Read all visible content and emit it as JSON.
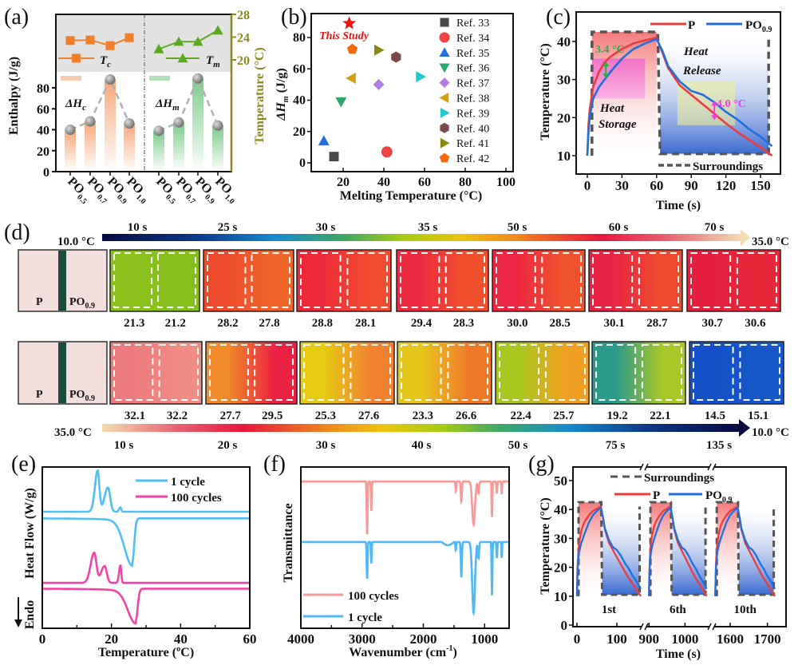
{
  "panels": {
    "a": "(a)",
    "b": "(b)",
    "c": "(c)",
    "d": "(d)",
    "e": "(e)",
    "f": "(f)",
    "g": "(g)"
  },
  "chart_data": [
    {
      "panel": "a",
      "type": "bar",
      "ylabel": "Enthalpy (J/g)",
      "y2label": "Temperature (°C)",
      "yticks": [
        "0",
        "20",
        "40",
        "60",
        "80"
      ],
      "y2ticks": [
        "20",
        "24",
        "28"
      ],
      "axis2_color": "#8a8a1a",
      "categories": [
        {
          "base": "PO",
          "sub": "0.5"
        },
        {
          "base": "PO",
          "sub": "0.7"
        },
        {
          "base": "PO",
          "sub": "0.9"
        },
        {
          "base": "PO",
          "sub": "1.0"
        }
      ],
      "groups": [
        {
          "name": {
            "main": "ΔH",
            "sub": "c"
          },
          "values": [
            40,
            48,
            88,
            46
          ],
          "color": "#f7a87a"
        },
        {
          "name": {
            "main": "ΔH",
            "sub": "m"
          },
          "values": [
            39,
            47,
            89,
            44
          ],
          "color": "#7ccc8c"
        }
      ],
      "lines": [
        {
          "name": {
            "main": "T",
            "sub": "c"
          },
          "values": [
            23.4,
            23.5,
            22.5,
            23.9
          ],
          "color": "#f07f2a",
          "marker": "square"
        },
        {
          "name": {
            "main": "T",
            "sub": "m"
          },
          "values": [
            21.9,
            23.2,
            23.2,
            25.2
          ],
          "color": "#5aaa1e",
          "marker": "triangle"
        }
      ]
    },
    {
      "panel": "b",
      "type": "scatter",
      "xlabel": "Melting Temperature (°C)",
      "ylabel": {
        "main": "ΔH",
        "sub": "m",
        "unit": " (J/g)"
      },
      "xticks": [
        "20",
        "40",
        "60",
        "80",
        "100"
      ],
      "yticks": [
        "0",
        "20",
        "40",
        "60",
        "80"
      ],
      "highlight": {
        "label": "This Study",
        "x": 23,
        "y": 89,
        "color": "#ee1111",
        "marker": "star"
      },
      "series": [
        {
          "name": "Ref. 33",
          "x": 15.5,
          "y": 4,
          "color": "#4a4a4a",
          "marker": "square"
        },
        {
          "name": "Ref. 34",
          "x": 41.5,
          "y": 7,
          "color": "#ef4444",
          "marker": "circle"
        },
        {
          "name": "Ref. 35",
          "x": 10.5,
          "y": 14,
          "color": "#1f6fe0",
          "marker": "triangle-up"
        },
        {
          "name": "Ref. 36",
          "x": 19,
          "y": 39,
          "color": "#2ea86a",
          "marker": "triangle-down"
        },
        {
          "name": "Ref. 37",
          "x": 37.5,
          "y": 50,
          "color": "#b07ee0",
          "marker": "diamond"
        },
        {
          "name": "Ref. 38",
          "x": 24,
          "y": 54,
          "color": "#d4a010",
          "marker": "triangle-left"
        },
        {
          "name": "Ref. 39",
          "x": 58,
          "y": 55,
          "color": "#20c8d0",
          "marker": "triangle-right"
        },
        {
          "name": "Ref. 40",
          "x": 46,
          "y": 67.5,
          "color": "#7a4a48",
          "marker": "hexagon"
        },
        {
          "name": "Ref. 41",
          "x": 37.5,
          "y": 72,
          "color": "#8a8a10",
          "marker": "triangle-right"
        },
        {
          "name": "Ref. 42",
          "x": 24.5,
          "y": 72.5,
          "color": "#f56a10",
          "marker": "pentagon"
        }
      ]
    },
    {
      "panel": "c",
      "type": "line",
      "xlabel": "Time (s)",
      "ylabel": "Temperature (°C)",
      "xticks": [
        "0",
        "30",
        "60",
        "90",
        "120",
        "150"
      ],
      "yticks": [
        "10",
        "20",
        "30",
        "40"
      ],
      "series": [
        {
          "name": {
            "main": "P",
            "sub": ""
          },
          "color": "#ee3b3b",
          "points": [
            [
              0,
              10
            ],
            [
              1,
              18
            ],
            [
              2,
              22
            ],
            [
              5,
              28
            ],
            [
              10,
              32
            ],
            [
              15,
              34.5
            ],
            [
              20,
              36
            ],
            [
              30,
              38
            ],
            [
              40,
              39.5
            ],
            [
              50,
              40.3
            ],
            [
              60,
              41
            ],
            [
              65,
              37
            ],
            [
              70,
              33
            ],
            [
              80,
              28.5
            ],
            [
              90,
              26
            ],
            [
              100,
              23.5
            ],
            [
              110,
              21
            ],
            [
              120,
              18.5
            ],
            [
              130,
              16.2
            ],
            [
              140,
              14.2
            ],
            [
              150,
              12.2
            ],
            [
              160,
              10
            ]
          ]
        },
        {
          "name": {
            "main": "PO",
            "sub": "0.9"
          },
          "color": "#1f6fe0",
          "points": [
            [
              0,
              10
            ],
            [
              1,
              16
            ],
            [
              2,
              20
            ],
            [
              5,
              25
            ],
            [
              10,
              28
            ],
            [
              15,
              30
            ],
            [
              20,
              32
            ],
            [
              30,
              35.5
            ],
            [
              40,
              38
            ],
            [
              50,
              39.5
            ],
            [
              60,
              40.6
            ],
            [
              65,
              37.5
            ],
            [
              70,
              33.5
            ],
            [
              80,
              29.5
            ],
            [
              90,
              27
            ],
            [
              100,
              26
            ],
            [
              110,
              24
            ],
            [
              120,
              21.5
            ],
            [
              130,
              19.5
            ],
            [
              140,
              17
            ],
            [
              150,
              15
            ],
            [
              160,
              12.5
            ]
          ]
        }
      ],
      "surroundings": {
        "label": "Surroundings",
        "points": [
          [
            4,
            10
          ],
          [
            4,
            42.5
          ],
          [
            61,
            42.5
          ],
          [
            63,
            10.5
          ],
          [
            157,
            10.5
          ],
          [
            157,
            41
          ]
        ]
      },
      "annotations": {
        "storage": [
          "Heat",
          "Storage"
        ],
        "release": [
          "Heat",
          "Release"
        ],
        "delta_storage": {
          "text": "3.4 °C",
          "color": "#22b04a",
          "at": 16
        },
        "delta_release": {
          "text": "4.0 °C",
          "color": "#ff33ee",
          "at": 110
        }
      }
    },
    {
      "panel": "e",
      "type": "line",
      "xlabel": "Temperature (ºC)",
      "ylabel": "Heat Flow (W/g)",
      "endo_label": "Endo",
      "xticks": [
        "0",
        "20",
        "40",
        "60"
      ],
      "series": [
        {
          "name": "1 cycle",
          "color": "#4fc0f5",
          "cooling": {
            "baseline": 15.9,
            "peaks": [
              [
                16,
                5.6,
                0.7
              ],
              [
                19,
                3.3,
                0.9
              ],
              [
                22.6,
                0.6,
                0.35
              ]
            ]
          },
          "heating": {
            "baseline": 15.0,
            "dip": [
              26,
              6.1,
              3.2,
              0.8
            ]
          }
        },
        {
          "name": "100 cycles",
          "color": "#f542a8",
          "cooling": {
            "baseline": 6.2,
            "peaks": [
              [
                15,
                4.1,
                0.9
              ],
              [
                18,
                2.3,
                0.9
              ],
              [
                22.6,
                2.4,
                0.35
              ]
            ]
          },
          "heating": {
            "baseline": 5.4,
            "dip": [
              27,
              4.4,
              3.2,
              0.8
            ]
          }
        }
      ]
    },
    {
      "panel": "f",
      "type": "line",
      "xlabel": {
        "main": "Wavenumber (cm",
        "sup": "-1",
        "end": ")"
      },
      "ylabel": "Transmittance",
      "xticks": [
        "4000",
        "3000",
        "2000",
        "1000"
      ],
      "series": [
        {
          "name": "100 cycles",
          "color": "#f79a9a",
          "baseline": 18.2,
          "bands": [
            [
              2918,
              6.6,
              10
            ],
            [
              2850,
              3.7,
              9
            ],
            [
              1470,
              1.2,
              9
            ],
            [
              1380,
              2.5,
              12
            ],
            [
              1180,
              5.4,
              32
            ],
            [
              1100,
              1.5,
              14
            ],
            [
              880,
              4.4,
              9
            ],
            [
              800,
              1.5,
              9
            ],
            [
              720,
              1.6,
              7
            ]
          ]
        },
        {
          "name": "1 cycle",
          "color": "#4fb8f5",
          "baseline": 10.7,
          "bands": [
            [
              2918,
              4.6,
              10
            ],
            [
              2850,
              2.7,
              9
            ],
            [
              1470,
              1.0,
              9
            ],
            [
              1380,
              4.4,
              12
            ],
            [
              1180,
              8.8,
              32
            ],
            [
              1100,
              2.0,
              14
            ],
            [
              880,
              6.6,
              9
            ],
            [
              800,
              2.0,
              9
            ],
            [
              720,
              2.0,
              7
            ]
          ]
        }
      ]
    },
    {
      "panel": "g",
      "type": "line",
      "xlabel": "Time (s)",
      "ylabel": "Temperature (°C)",
      "yticks": [
        "0",
        "10",
        "20",
        "30",
        "40",
        "50"
      ],
      "xticks": [
        [
          "0",
          "100"
        ],
        [
          "900",
          "1000"
        ],
        [
          "1600",
          "1700"
        ]
      ],
      "legend": {
        "surroundings": "Surroundings",
        "p": "P",
        "po": {
          "main": "PO",
          "sub": "0.9"
        }
      },
      "cycles": [
        {
          "label": "1st",
          "start": 0
        },
        {
          "label": "6th",
          "start": 900
        },
        {
          "label": "10th",
          "start": 1560
        }
      ]
    }
  ],
  "thermal": {
    "heating": {
      "scale_min": "10.0 °C",
      "scale_max": "35.0 °C",
      "times": [
        "10 s",
        "25 s",
        "30 s",
        "35 s",
        "50 s",
        "60 s",
        "70 s"
      ],
      "photo": {
        "left": "P",
        "right": {
          "main": "PO",
          "sub": "0.9"
        }
      },
      "frames": [
        {
          "values": [
            "21.3",
            "21.2"
          ],
          "colors": [
            "#8cc21c",
            "#84bf1a"
          ]
        },
        {
          "values": [
            "28.2",
            "27.8"
          ],
          "colors": [
            "#ee4a2c",
            "#f0652a"
          ]
        },
        {
          "values": [
            "28.8",
            "28.1"
          ],
          "colors": [
            "#ee2a3a",
            "#f04c30"
          ]
        },
        {
          "values": [
            "29.4",
            "28.3"
          ],
          "colors": [
            "#ec2a40",
            "#f0502c"
          ]
        },
        {
          "values": [
            "30.0",
            "28.5"
          ],
          "colors": [
            "#ec2642",
            "#f0522e"
          ]
        },
        {
          "values": [
            "30.1",
            "28.7"
          ],
          "colors": [
            "#e82444",
            "#ee4a30"
          ]
        },
        {
          "values": [
            "30.7",
            "30.6"
          ],
          "colors": [
            "#e4203e",
            "#e6283a"
          ]
        }
      ]
    },
    "cooling": {
      "scale_min": "10.0 °C",
      "scale_max": "35.0 °C",
      "times": [
        "10 s",
        "20 s",
        "30 s",
        "40 s",
        "50 s",
        "75 s",
        "135 s"
      ],
      "photo": {
        "left": "P",
        "right": {
          "main": "PO",
          "sub": "0.9"
        }
      },
      "frames": [
        {
          "values": [
            "32.1",
            "32.2"
          ],
          "colors": [
            "#ec7a7c",
            "#f08c82"
          ]
        },
        {
          "values": [
            "27.7",
            "29.5"
          ],
          "colors": [
            "#f08a2a",
            "#ec2242"
          ]
        },
        {
          "values": [
            "25.3",
            "27.6"
          ],
          "colors": [
            "#e6cc12",
            "#f08230"
          ]
        },
        {
          "values": [
            "23.3",
            "26.6"
          ],
          "colors": [
            "#e6c81c",
            "#f07a28"
          ]
        },
        {
          "values": [
            "22.4",
            "25.7"
          ],
          "colors": [
            "#a8c820",
            "#f0a020"
          ]
        },
        {
          "values": [
            "19.2",
            "22.1"
          ],
          "colors": [
            "#2a9a8a",
            "#a8c828"
          ]
        },
        {
          "values": [
            "14.5",
            "15.1"
          ],
          "colors": [
            "#1450c8",
            "#1658c8"
          ]
        }
      ]
    }
  }
}
